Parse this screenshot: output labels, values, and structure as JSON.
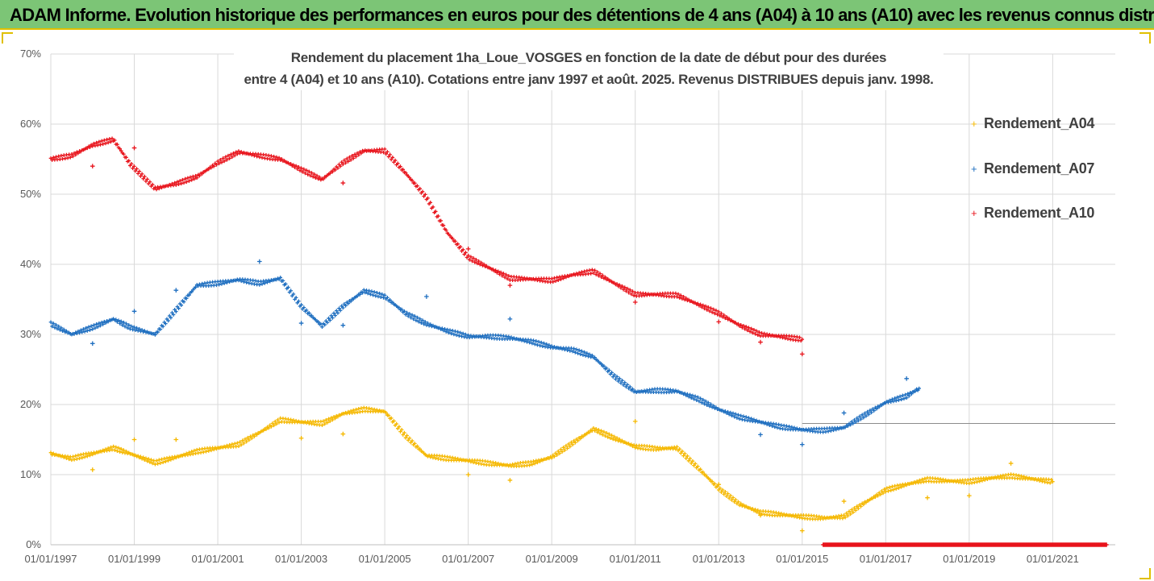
{
  "banner": {
    "text": "ADAM Informe. Evolution historique des performances en euros pour des détentions de 4 ans (A04) à 10 ans (A10) avec les revenus connus distribués"
  },
  "chart_data": {
    "type": "scatter",
    "title_line1": "Rendement du placement 1ha_Loue_VOSGES en fonction de la date de début pour des durées",
    "title_line2": "entre 4 (A04) et 10 ans (A10). Cotations entre janv 1997 et août. 2025. Revenus DISTRIBUES depuis janv. 1998.",
    "xlim": [
      1997,
      2022.5
    ],
    "ylim": [
      0,
      70
    ],
    "x_tick_labels": [
      "01/01/1997",
      "01/01/1999",
      "01/01/2001",
      "01/01/2003",
      "01/01/2005",
      "01/01/2007",
      "01/01/2009",
      "01/01/2011",
      "01/01/2013",
      "01/01/2015",
      "01/01/2017",
      "01/01/2019",
      "01/01/2021"
    ],
    "y_tick_labels": [
      "0%",
      "10%",
      "20%",
      "30%",
      "40%",
      "50%",
      "60%",
      "70%"
    ],
    "grid": true,
    "legend_position": "right",
    "series": [
      {
        "name": "Rendement_A04",
        "color": "#f5b800",
        "points": [
          [
            1997.0,
            13.0
          ],
          [
            1997.5,
            12.3
          ],
          [
            1998.0,
            13.0
          ],
          [
            1998.5,
            13.8
          ],
          [
            1998.9,
            13.0
          ],
          [
            1999.5,
            11.7
          ],
          [
            2000.0,
            12.5
          ],
          [
            2000.5,
            13.3
          ],
          [
            2001.0,
            13.8
          ],
          [
            2001.5,
            14.3
          ],
          [
            2002.0,
            16.0
          ],
          [
            2002.5,
            17.8
          ],
          [
            2003.0,
            17.5
          ],
          [
            2003.5,
            17.3
          ],
          [
            2004.0,
            18.7
          ],
          [
            2004.5,
            19.3
          ],
          [
            2005.0,
            19.0
          ],
          [
            2005.5,
            15.5
          ],
          [
            2006.0,
            12.7
          ],
          [
            2006.5,
            12.3
          ],
          [
            2007.0,
            12.0
          ],
          [
            2007.5,
            11.6
          ],
          [
            2008.0,
            11.3
          ],
          [
            2008.5,
            11.6
          ],
          [
            2009.0,
            12.5
          ],
          [
            2009.5,
            14.5
          ],
          [
            2010.0,
            16.5
          ],
          [
            2010.5,
            15.2
          ],
          [
            2011.0,
            14.0
          ],
          [
            2011.5,
            13.7
          ],
          [
            2012.0,
            13.8
          ],
          [
            2012.5,
            11.0
          ],
          [
            2013.0,
            8.0
          ],
          [
            2013.5,
            5.8
          ],
          [
            2014.0,
            4.6
          ],
          [
            2014.5,
            4.3
          ],
          [
            2015.0,
            4.0
          ],
          [
            2015.5,
            3.8
          ],
          [
            2016.0,
            4.0
          ],
          [
            2016.5,
            6.0
          ],
          [
            2017.0,
            7.8
          ],
          [
            2017.5,
            8.6
          ],
          [
            2018.0,
            9.3
          ],
          [
            2018.5,
            9.1
          ],
          [
            2019.0,
            9.0
          ],
          [
            2019.5,
            9.5
          ],
          [
            2020.0,
            9.8
          ],
          [
            2020.5,
            9.4
          ],
          [
            2021.0,
            9.0
          ]
        ],
        "outliers": [
          [
            1998.0,
            10.7
          ],
          [
            1999.0,
            15.0
          ],
          [
            2000.0,
            15.0
          ],
          [
            2003.0,
            15.2
          ],
          [
            2004.0,
            15.8
          ],
          [
            2007.0,
            10.0
          ],
          [
            2008.0,
            9.2
          ],
          [
            2011.0,
            17.6
          ],
          [
            2013.0,
            8.6
          ],
          [
            2014.0,
            4.2
          ],
          [
            2015.0,
            2.0
          ],
          [
            2016.0,
            6.2
          ],
          [
            2018.0,
            6.7
          ],
          [
            2019.0,
            7.0
          ],
          [
            2020.0,
            11.6
          ]
        ]
      },
      {
        "name": "Rendement_A07",
        "color": "#1f6fc0",
        "points": [
          [
            1997.0,
            31.5
          ],
          [
            1997.5,
            30.0
          ],
          [
            1998.0,
            31.0
          ],
          [
            1998.5,
            32.2
          ],
          [
            1998.9,
            31.0
          ],
          [
            1999.5,
            30.0
          ],
          [
            2000.0,
            33.5
          ],
          [
            2000.5,
            37.0
          ],
          [
            2001.0,
            37.3
          ],
          [
            2001.5,
            37.8
          ],
          [
            2002.0,
            37.3
          ],
          [
            2002.5,
            38.0
          ],
          [
            2003.0,
            34.0
          ],
          [
            2003.5,
            31.2
          ],
          [
            2004.0,
            34.0
          ],
          [
            2004.5,
            36.2
          ],
          [
            2005.0,
            35.4
          ],
          [
            2005.5,
            33.0
          ],
          [
            2006.0,
            31.5
          ],
          [
            2006.5,
            30.5
          ],
          [
            2007.0,
            29.7
          ],
          [
            2007.5,
            29.7
          ],
          [
            2008.0,
            29.5
          ],
          [
            2008.5,
            29.0
          ],
          [
            2009.0,
            28.2
          ],
          [
            2009.5,
            27.8
          ],
          [
            2010.0,
            26.8
          ],
          [
            2010.5,
            24.0
          ],
          [
            2011.0,
            21.8
          ],
          [
            2011.5,
            22.0
          ],
          [
            2012.0,
            21.9
          ],
          [
            2012.5,
            20.8
          ],
          [
            2013.0,
            19.3
          ],
          [
            2013.5,
            18.2
          ],
          [
            2014.0,
            17.5
          ],
          [
            2014.5,
            16.8
          ],
          [
            2015.0,
            16.4
          ],
          [
            2015.5,
            16.3
          ],
          [
            2016.0,
            16.7
          ],
          [
            2016.5,
            18.5
          ],
          [
            2017.0,
            20.3
          ],
          [
            2017.5,
            21.2
          ],
          [
            2017.8,
            22.3
          ]
        ],
        "outliers": [
          [
            1998.0,
            28.7
          ],
          [
            1999.0,
            33.3
          ],
          [
            2000.0,
            36.3
          ],
          [
            2002.0,
            40.4
          ],
          [
            2003.0,
            31.6
          ],
          [
            2004.0,
            31.3
          ],
          [
            2006.0,
            35.4
          ],
          [
            2008.0,
            32.2
          ],
          [
            2014.0,
            15.7
          ],
          [
            2015.0,
            14.3
          ],
          [
            2016.0,
            18.8
          ],
          [
            2017.5,
            23.7
          ]
        ]
      },
      {
        "name": "Rendement_A10",
        "color": "#e8141c",
        "points": [
          [
            1997.0,
            55.0
          ],
          [
            1997.5,
            55.5
          ],
          [
            1998.0,
            57.0
          ],
          [
            1998.5,
            57.8
          ],
          [
            1998.9,
            54.3
          ],
          [
            1999.5,
            50.8
          ],
          [
            2000.0,
            51.5
          ],
          [
            2000.5,
            52.5
          ],
          [
            2001.0,
            54.5
          ],
          [
            2001.5,
            56.0
          ],
          [
            2002.0,
            55.5
          ],
          [
            2002.5,
            55.0
          ],
          [
            2003.0,
            53.5
          ],
          [
            2003.5,
            52.1
          ],
          [
            2004.0,
            54.5
          ],
          [
            2004.5,
            56.2
          ],
          [
            2005.0,
            56.2
          ],
          [
            2005.5,
            53.0
          ],
          [
            2006.0,
            49.5
          ],
          [
            2006.5,
            44.5
          ],
          [
            2007.0,
            41.0
          ],
          [
            2007.5,
            39.5
          ],
          [
            2008.0,
            38.0
          ],
          [
            2008.5,
            37.9
          ],
          [
            2009.0,
            37.7
          ],
          [
            2009.5,
            38.5
          ],
          [
            2010.0,
            39.0
          ],
          [
            2010.5,
            37.3
          ],
          [
            2011.0,
            35.7
          ],
          [
            2011.5,
            35.7
          ],
          [
            2012.0,
            35.6
          ],
          [
            2012.5,
            34.3
          ],
          [
            2013.0,
            33.0
          ],
          [
            2013.5,
            31.3
          ],
          [
            2014.0,
            30.0
          ],
          [
            2014.5,
            29.7
          ],
          [
            2015.0,
            29.3
          ]
        ],
        "zero_segment": [
          2015.5,
          2022.3
        ],
        "outliers": [
          [
            1998.0,
            54.0
          ],
          [
            1999.0,
            56.6
          ],
          [
            2004.0,
            51.6
          ],
          [
            2007.0,
            42.2
          ],
          [
            2008.0,
            37.0
          ],
          [
            2011.0,
            34.6
          ],
          [
            2013.0,
            31.8
          ],
          [
            2014.0,
            28.9
          ],
          [
            2015.0,
            27.2
          ]
        ]
      }
    ]
  }
}
